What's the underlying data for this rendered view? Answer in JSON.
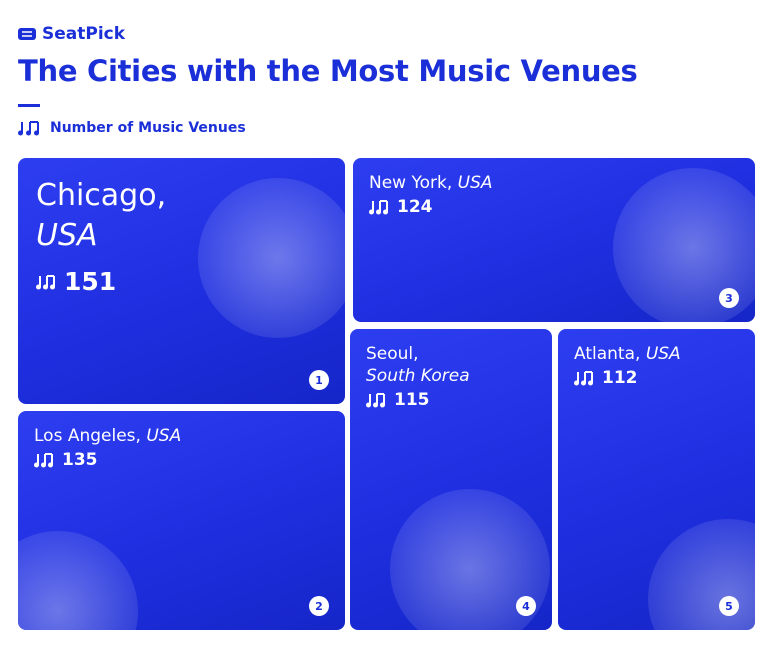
{
  "brand": "SeatPick",
  "title": "The Cities with the Most Music Venues",
  "legend": "Number of Music Venues",
  "tiles": [
    {
      "city": "Chicago,",
      "country": "USA",
      "value": 151,
      "rank": 1
    },
    {
      "city": "Los Angeles,",
      "country": "USA",
      "value": 135,
      "rank": 2
    },
    {
      "city": "New York,",
      "country": "USA",
      "value": 124,
      "rank": 3
    },
    {
      "city": "Seoul,",
      "country": "South Korea",
      "value": 115,
      "rank": 4
    },
    {
      "city": "Atlanta,",
      "country": "USA",
      "value": 112,
      "rank": 5
    }
  ]
}
